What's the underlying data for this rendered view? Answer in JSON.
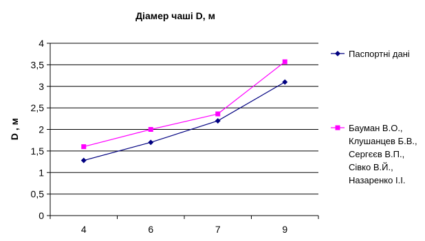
{
  "chart_data": {
    "type": "line",
    "title": "Діамер чаші  D, м",
    "ylabel": "D , м",
    "xlabel": "",
    "categories": [
      "4",
      "6",
      "7",
      "9"
    ],
    "ylim": [
      0,
      4
    ],
    "yticks": [
      "0",
      "0,5",
      "1",
      "1,5",
      "2",
      "2,5",
      "3",
      "3,5",
      "4"
    ],
    "grid": true,
    "legend_position": "right",
    "series": [
      {
        "name": "Паспортні дані",
        "values": [
          1.28,
          1.7,
          2.2,
          3.1
        ],
        "color": "#000080",
        "marker": "diamond"
      },
      {
        "name": "Бауман В.О., Клушанцев Б.В., Сергєєв В.П., Сівко В.Й., Назаренко І.І.",
        "name_lines": [
          "Бауман В.О.,",
          "Клушанцев Б.В.,",
          "Сергєєв В.П.,",
          "Сівко В.Й.,",
          "Назаренко І.І."
        ],
        "values": [
          1.6,
          2.0,
          2.36,
          3.57
        ],
        "color": "#ff00ff",
        "marker": "square"
      }
    ]
  }
}
